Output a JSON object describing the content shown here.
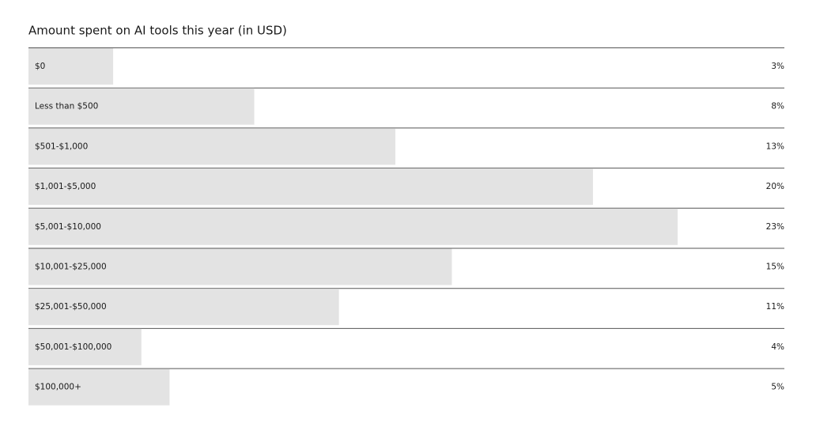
{
  "chart_data": {
    "type": "bar",
    "orientation": "horizontal",
    "title": "Amount spent on AI tools this year (in USD)",
    "categories": [
      "$0",
      "Less than $500",
      "$501-$1,000",
      "$1,001-$5,000",
      "$5,001-$10,000",
      "$10,001-$25,000",
      "$25,001-$50,000",
      "$50,001-$100,000",
      "$100,000+"
    ],
    "values": [
      3,
      8,
      13,
      20,
      23,
      15,
      11,
      4,
      5
    ],
    "value_labels": [
      "3%",
      "8%",
      "13%",
      "20%",
      "23%",
      "15%",
      "11%",
      "4%",
      "5%"
    ],
    "color": "#e3e3e3"
  }
}
